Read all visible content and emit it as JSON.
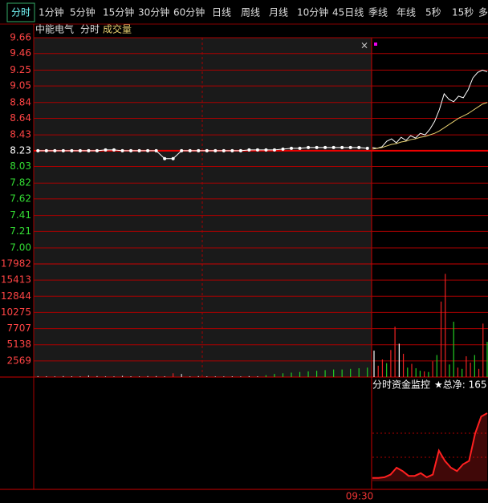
{
  "toolbar": [
    "分时",
    "1分钟",
    "5分钟",
    "15分钟",
    "30分钟",
    "60分钟",
    "日线",
    "周线",
    "月线",
    "10分钟",
    "45日线",
    "季线",
    "年线",
    "5秒",
    "15秒",
    "多"
  ],
  "header": {
    "name": "中能电气",
    "mode": "分时",
    "indicator": "成交量"
  },
  "time_label": "09:30",
  "chart_data": [
    {
      "type": "line",
      "reference": 8.23,
      "ylim": [
        7,
        9.66
      ],
      "yticks": [
        {
          "value": 7,
          "label": "7.00"
        },
        7.21,
        7.41,
        7.62,
        7.82,
        8.03,
        8.23,
        8.43,
        8.64,
        8.84,
        9.05,
        9.25,
        9.46,
        9.66
      ],
      "series": [
        {
          "color": "#ffffff",
          "markers": true,
          "values": [
            8.23,
            8.23,
            8.23,
            8.23,
            8.23,
            8.23,
            8.23,
            8.23,
            8.24,
            8.24,
            8.23,
            8.23,
            8.23,
            8.23,
            8.23,
            8.13,
            8.13,
            8.23,
            8.23,
            8.23,
            8.23,
            8.23,
            8.23,
            8.23,
            8.23,
            8.24,
            8.24,
            8.24,
            8.24,
            8.25,
            8.26,
            8.26,
            8.27,
            8.27,
            8.27,
            8.27,
            8.27,
            8.27,
            8.27,
            8.26
          ]
        },
        {
          "color": "#ffffff",
          "markers": false,
          "values": [
            8.27,
            8.26,
            8.28,
            8.35,
            8.38,
            8.33,
            8.4,
            8.36,
            8.42,
            8.39,
            8.45,
            8.43,
            8.5,
            8.6,
            8.75,
            8.95,
            8.88,
            8.85,
            8.92,
            8.9,
            9.0,
            9.15,
            9.22,
            9.25,
            9.23
          ]
        },
        {
          "color": "#e8d070",
          "markers": false,
          "values": [
            8.25,
            8.26,
            8.27,
            8.29,
            8.31,
            8.32,
            8.34,
            8.35,
            8.37,
            8.38,
            8.4,
            8.41,
            8.43,
            8.45,
            8.48,
            8.52,
            8.56,
            8.6,
            8.64,
            8.67,
            8.7,
            8.74,
            8.78,
            8.82,
            8.84
          ]
        }
      ]
    },
    {
      "type": "bar",
      "ylim": [
        0,
        17982
      ],
      "yticks": [
        2569,
        5138,
        7707,
        10275,
        12844,
        15413,
        17982
      ],
      "series": [
        {
          "values": [
            150,
            120,
            100,
            150,
            120,
            100,
            250,
            150,
            100,
            100,
            200,
            120,
            100,
            150,
            150,
            120,
            600,
            500,
            100,
            150,
            120,
            100,
            100,
            120,
            100,
            150,
            120,
            300,
            500,
            600,
            700,
            800,
            900,
            1000,
            1100,
            1200,
            1200,
            1300,
            1400,
            1500
          ],
          "colors": [
            "#ccc",
            "#ccc",
            "#ccc",
            "#ccc",
            "#ccc",
            "#ccc",
            "#ccc",
            "#ccc",
            "#ccc",
            "#ccc",
            "#ccc",
            "#ccc",
            "#ccc",
            "#ccc",
            "#ccc",
            "#ccc",
            "#ee2222",
            "#ccc",
            "#ccc",
            "#ccc",
            "#ccc",
            "#ccc",
            "#ccc",
            "#ccc",
            "#ccc",
            "#ccc",
            "#ccc",
            "#22cc22",
            "#22cc22",
            "#22cc22",
            "#22cc22",
            "#22cc22",
            "#22cc22",
            "#22cc22",
            "#22cc22",
            "#22cc22",
            "#22cc22",
            "#22cc22",
            "#22cc22",
            "#22cc22"
          ]
        },
        {
          "values": [
            4200,
            1800,
            2800,
            2200,
            4300,
            8000,
            5300,
            3700,
            1500,
            2100,
            1400,
            1000,
            900,
            800,
            2500,
            3500,
            12000,
            16400,
            2000,
            8800,
            1500,
            1300,
            3300,
            2300,
            3500,
            1300,
            8500,
            5600
          ],
          "colors": [
            "#ffffff",
            "#ee2222",
            "#ee2222",
            "#22cc22",
            "#ee2222",
            "#ee2222",
            "#ffffff",
            "#ee2222",
            "#22cc22",
            "#ee2222",
            "#22cc22",
            "#22cc22",
            "#ee2222",
            "#22cc22",
            "#ee2222",
            "#22cc22",
            "#ee2222",
            "#ee2222",
            "#22cc22",
            "#22cc22",
            "#ee2222",
            "#22cc22",
            "#ee2222",
            "#ee2222",
            "#22cc22",
            "#ee2222",
            "#ee2222",
            "#22cc22"
          ]
        }
      ]
    },
    {
      "type": "area",
      "title": "分时资金监控",
      "subtitle": "★总净: 165",
      "color": "#ff2020",
      "values": [
        5,
        5,
        6,
        10,
        20,
        15,
        8,
        8,
        12,
        6,
        10,
        45,
        30,
        20,
        15,
        25,
        30,
        70,
        95,
        100
      ]
    }
  ]
}
